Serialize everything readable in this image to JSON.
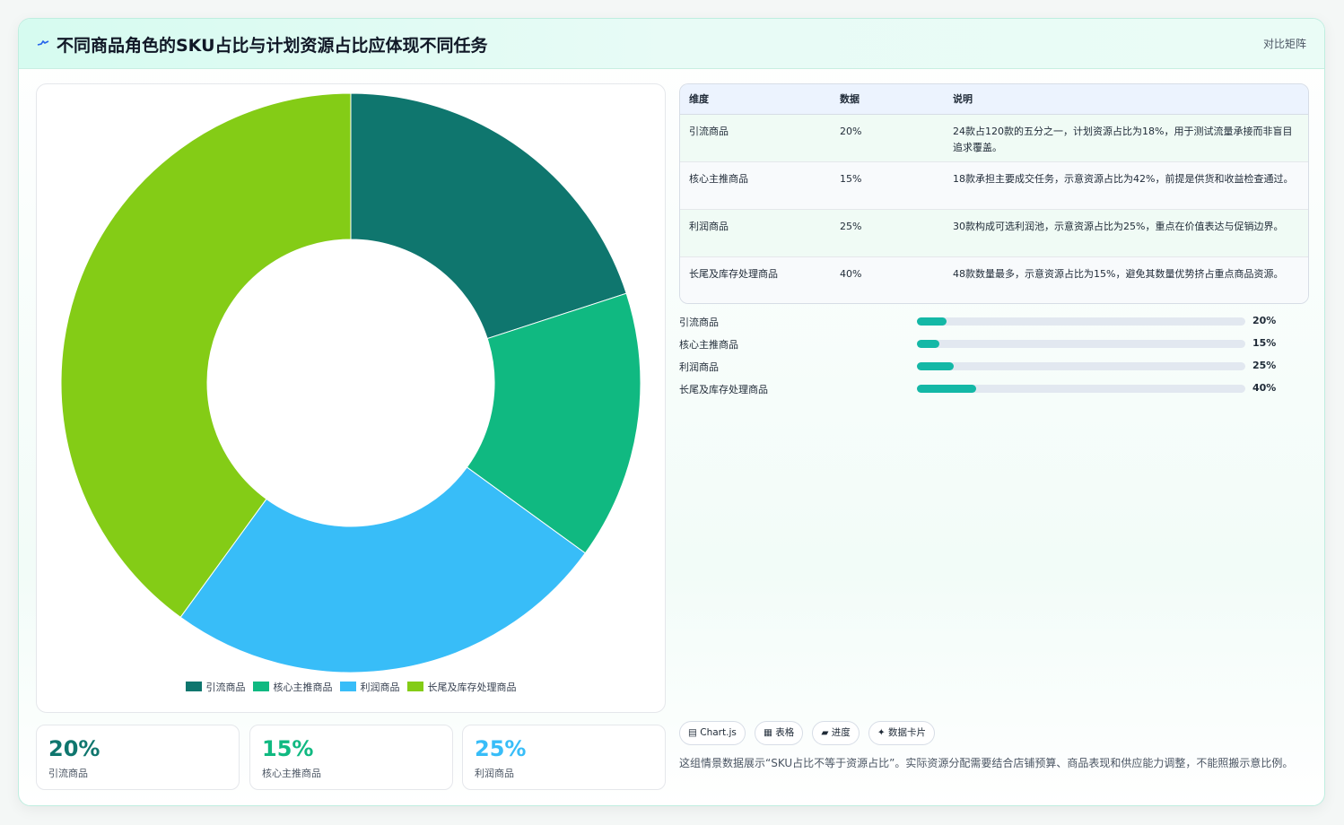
{
  "header": {
    "title": "不同商品角色的SKU占比与计划资源占比应体现不同任务",
    "tag": "对比矩阵"
  },
  "colors": {
    "teal_dark": "#0f766e",
    "green": "#10b981",
    "sky": "#38bdf8",
    "lime": "#84cc16",
    "bar_fill": "#14b8a6"
  },
  "chart_data": {
    "type": "pie",
    "variant": "doughnut",
    "categories": [
      "引流商品",
      "核心主推商品",
      "利润商品",
      "长尾及库存处理商品"
    ],
    "values": [
      20,
      15,
      25,
      40
    ],
    "colors": [
      "#0f766e",
      "#10b981",
      "#38bdf8",
      "#84cc16"
    ],
    "legend_position": "bottom"
  },
  "kpis": [
    {
      "value": "20%",
      "label": "引流商品",
      "color": "#0f766e"
    },
    {
      "value": "15%",
      "label": "核心主推商品",
      "color": "#10b981"
    },
    {
      "value": "25%",
      "label": "利润商品",
      "color": "#38bdf8"
    }
  ],
  "table": {
    "headers": [
      "维度",
      "数据",
      "说明"
    ],
    "rows": [
      {
        "dim": "引流商品",
        "data": "20%",
        "desc": "24款占120款的五分之一，计划资源占比为18%，用于测试流量承接而非盲目追求覆盖。"
      },
      {
        "dim": "核心主推商品",
        "data": "15%",
        "desc": "18款承担主要成交任务，示意资源占比为42%，前提是供货和收益检查通过。"
      },
      {
        "dim": "利润商品",
        "data": "25%",
        "desc": "30款构成可选利润池，示意资源占比为25%，重点在价值表达与促销边界。"
      },
      {
        "dim": "长尾及库存处理商品",
        "data": "40%",
        "desc": "48款数量最多，示意资源占比为15%，避免其数量优势挤占重点商品资源。"
      }
    ]
  },
  "progress": [
    {
      "label": "引流商品",
      "value": 20,
      "text": "20%"
    },
    {
      "label": "核心主推商品",
      "value": 15,
      "text": "15%"
    },
    {
      "label": "利润商品",
      "value": 25,
      "text": "25%"
    },
    {
      "label": "长尾及库存处理商品",
      "value": 40,
      "text": "40%"
    }
  ],
  "chips": [
    {
      "icon": "chart-icon",
      "glyph": "▤",
      "label": "Chart.js"
    },
    {
      "icon": "table-icon",
      "glyph": "▦",
      "label": "表格"
    },
    {
      "icon": "progress-icon",
      "glyph": "▰",
      "label": "进度"
    },
    {
      "icon": "sparkle-icon",
      "glyph": "✦",
      "label": "数据卡片"
    }
  ],
  "note": "这组情景数据展示“SKU占比不等于资源占比”。实际资源分配需要结合店铺预算、商品表现和供应能力调整，不能照搬示意比例。"
}
